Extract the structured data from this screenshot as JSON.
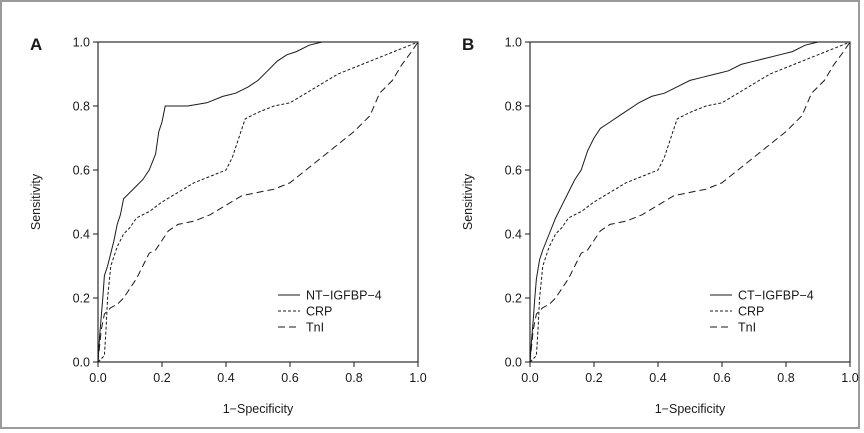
{
  "chart_data": [
    {
      "type": "line",
      "panel_letter": "A",
      "xlabel": "1−Specificity",
      "ylabel": "Sensitivity",
      "xlim": [
        0.0,
        1.0
      ],
      "ylim": [
        0.0,
        1.0
      ],
      "xticks": [
        "0.0",
        "0.2",
        "0.4",
        "0.6",
        "0.8",
        "1.0"
      ],
      "yticks": [
        "0.0",
        "0.2",
        "0.4",
        "0.6",
        "0.8",
        "1.0"
      ],
      "grid": false,
      "legend_position": "bottom-right",
      "series": [
        {
          "name": "NT−IGFBP−4",
          "dash": "solid",
          "points": [
            [
              0,
              0
            ],
            [
              0.005,
              0.08
            ],
            [
              0.01,
              0.14
            ],
            [
              0.015,
              0.2
            ],
            [
              0.02,
              0.27
            ],
            [
              0.03,
              0.3
            ],
            [
              0.04,
              0.34
            ],
            [
              0.05,
              0.38
            ],
            [
              0.06,
              0.43
            ],
            [
              0.07,
              0.46
            ],
            [
              0.08,
              0.51
            ],
            [
              0.1,
              0.53
            ],
            [
              0.12,
              0.55
            ],
            [
              0.14,
              0.57
            ],
            [
              0.16,
              0.6
            ],
            [
              0.18,
              0.65
            ],
            [
              0.19,
              0.72
            ],
            [
              0.2,
              0.75
            ],
            [
              0.21,
              0.8
            ],
            [
              0.28,
              0.8
            ],
            [
              0.34,
              0.81
            ],
            [
              0.39,
              0.83
            ],
            [
              0.43,
              0.84
            ],
            [
              0.47,
              0.86
            ],
            [
              0.5,
              0.88
            ],
            [
              0.53,
              0.91
            ],
            [
              0.56,
              0.94
            ],
            [
              0.59,
              0.96
            ],
            [
              0.62,
              0.97
            ],
            [
              0.66,
              0.99
            ],
            [
              0.7,
              1.0
            ],
            [
              1.0,
              1.0
            ]
          ]
        },
        {
          "name": "CRP",
          "dash": "dotted",
          "points": [
            [
              0,
              0
            ],
            [
              0.02,
              0.02
            ],
            [
              0.025,
              0.1
            ],
            [
              0.03,
              0.2
            ],
            [
              0.04,
              0.3
            ],
            [
              0.06,
              0.36
            ],
            [
              0.08,
              0.4
            ],
            [
              0.1,
              0.42
            ],
            [
              0.12,
              0.45
            ],
            [
              0.16,
              0.47
            ],
            [
              0.2,
              0.5
            ],
            [
              0.25,
              0.53
            ],
            [
              0.3,
              0.56
            ],
            [
              0.35,
              0.58
            ],
            [
              0.4,
              0.6
            ],
            [
              0.42,
              0.64
            ],
            [
              0.44,
              0.7
            ],
            [
              0.46,
              0.76
            ],
            [
              0.5,
              0.78
            ],
            [
              0.55,
              0.8
            ],
            [
              0.6,
              0.81
            ],
            [
              0.65,
              0.84
            ],
            [
              0.7,
              0.87
            ],
            [
              0.75,
              0.9
            ],
            [
              0.8,
              0.92
            ],
            [
              0.85,
              0.94
            ],
            [
              0.9,
              0.96
            ],
            [
              0.95,
              0.98
            ],
            [
              1.0,
              1.0
            ]
          ]
        },
        {
          "name": "TnI",
          "dash": "dashed",
          "points": [
            [
              0,
              0
            ],
            [
              0.005,
              0.05
            ],
            [
              0.01,
              0.1
            ],
            [
              0.02,
              0.15
            ],
            [
              0.04,
              0.17
            ],
            [
              0.06,
              0.18
            ],
            [
              0.08,
              0.2
            ],
            [
              0.1,
              0.23
            ],
            [
              0.12,
              0.26
            ],
            [
              0.14,
              0.3
            ],
            [
              0.16,
              0.34
            ],
            [
              0.18,
              0.35
            ],
            [
              0.2,
              0.38
            ],
            [
              0.22,
              0.41
            ],
            [
              0.25,
              0.43
            ],
            [
              0.3,
              0.44
            ],
            [
              0.35,
              0.46
            ],
            [
              0.4,
              0.49
            ],
            [
              0.45,
              0.52
            ],
            [
              0.5,
              0.53
            ],
            [
              0.55,
              0.54
            ],
            [
              0.6,
              0.56
            ],
            [
              0.65,
              0.6
            ],
            [
              0.7,
              0.64
            ],
            [
              0.75,
              0.68
            ],
            [
              0.8,
              0.72
            ],
            [
              0.85,
              0.77
            ],
            [
              0.88,
              0.84
            ],
            [
              0.92,
              0.88
            ],
            [
              0.95,
              0.93
            ],
            [
              0.98,
              0.97
            ],
            [
              1.0,
              1.0
            ]
          ]
        }
      ]
    },
    {
      "type": "line",
      "panel_letter": "B",
      "xlabel": "1−Specificity",
      "ylabel": "Sensitivity",
      "xlim": [
        0.0,
        1.0
      ],
      "ylim": [
        0.0,
        1.0
      ],
      "xticks": [
        "0.0",
        "0.2",
        "0.4",
        "0.6",
        "0.8",
        "1.0"
      ],
      "yticks": [
        "0.0",
        "0.2",
        "0.4",
        "0.6",
        "0.8",
        "1.0"
      ],
      "grid": false,
      "legend_position": "bottom-right",
      "series": [
        {
          "name": "CT−IGFBP−4",
          "dash": "solid",
          "points": [
            [
              0,
              0
            ],
            [
              0.005,
              0.07
            ],
            [
              0.01,
              0.13
            ],
            [
              0.015,
              0.2
            ],
            [
              0.02,
              0.26
            ],
            [
              0.03,
              0.32
            ],
            [
              0.04,
              0.35
            ],
            [
              0.06,
              0.4
            ],
            [
              0.08,
              0.45
            ],
            [
              0.1,
              0.49
            ],
            [
              0.12,
              0.53
            ],
            [
              0.14,
              0.57
            ],
            [
              0.16,
              0.6
            ],
            [
              0.18,
              0.66
            ],
            [
              0.2,
              0.7
            ],
            [
              0.22,
              0.73
            ],
            [
              0.25,
              0.75
            ],
            [
              0.28,
              0.77
            ],
            [
              0.31,
              0.79
            ],
            [
              0.34,
              0.81
            ],
            [
              0.38,
              0.83
            ],
            [
              0.42,
              0.84
            ],
            [
              0.46,
              0.86
            ],
            [
              0.5,
              0.88
            ],
            [
              0.54,
              0.89
            ],
            [
              0.58,
              0.9
            ],
            [
              0.62,
              0.91
            ],
            [
              0.66,
              0.93
            ],
            [
              0.7,
              0.94
            ],
            [
              0.74,
              0.95
            ],
            [
              0.78,
              0.96
            ],
            [
              0.82,
              0.97
            ],
            [
              0.86,
              0.99
            ],
            [
              0.9,
              1.0
            ],
            [
              1.0,
              1.0
            ]
          ]
        },
        {
          "name": "CRP",
          "dash": "dotted",
          "points": [
            [
              0,
              0
            ],
            [
              0.02,
              0.02
            ],
            [
              0.025,
              0.1
            ],
            [
              0.03,
              0.2
            ],
            [
              0.04,
              0.3
            ],
            [
              0.06,
              0.36
            ],
            [
              0.08,
              0.4
            ],
            [
              0.1,
              0.42
            ],
            [
              0.12,
              0.45
            ],
            [
              0.16,
              0.47
            ],
            [
              0.2,
              0.5
            ],
            [
              0.25,
              0.53
            ],
            [
              0.3,
              0.56
            ],
            [
              0.35,
              0.58
            ],
            [
              0.4,
              0.6
            ],
            [
              0.42,
              0.64
            ],
            [
              0.44,
              0.7
            ],
            [
              0.46,
              0.76
            ],
            [
              0.5,
              0.78
            ],
            [
              0.55,
              0.8
            ],
            [
              0.6,
              0.81
            ],
            [
              0.65,
              0.84
            ],
            [
              0.7,
              0.87
            ],
            [
              0.75,
              0.9
            ],
            [
              0.8,
              0.92
            ],
            [
              0.85,
              0.94
            ],
            [
              0.9,
              0.96
            ],
            [
              0.95,
              0.98
            ],
            [
              1.0,
              1.0
            ]
          ]
        },
        {
          "name": "TnI",
          "dash": "dashed",
          "points": [
            [
              0,
              0
            ],
            [
              0.005,
              0.05
            ],
            [
              0.01,
              0.1
            ],
            [
              0.02,
              0.15
            ],
            [
              0.04,
              0.17
            ],
            [
              0.06,
              0.18
            ],
            [
              0.08,
              0.2
            ],
            [
              0.1,
              0.23
            ],
            [
              0.12,
              0.26
            ],
            [
              0.14,
              0.3
            ],
            [
              0.16,
              0.34
            ],
            [
              0.18,
              0.35
            ],
            [
              0.2,
              0.38
            ],
            [
              0.22,
              0.41
            ],
            [
              0.25,
              0.43
            ],
            [
              0.3,
              0.44
            ],
            [
              0.35,
              0.46
            ],
            [
              0.4,
              0.49
            ],
            [
              0.45,
              0.52
            ],
            [
              0.5,
              0.53
            ],
            [
              0.55,
              0.54
            ],
            [
              0.6,
              0.56
            ],
            [
              0.65,
              0.6
            ],
            [
              0.7,
              0.64
            ],
            [
              0.75,
              0.68
            ],
            [
              0.8,
              0.72
            ],
            [
              0.85,
              0.77
            ],
            [
              0.88,
              0.84
            ],
            [
              0.92,
              0.88
            ],
            [
              0.95,
              0.93
            ],
            [
              0.98,
              0.97
            ],
            [
              1.0,
              1.0
            ]
          ]
        }
      ]
    }
  ]
}
